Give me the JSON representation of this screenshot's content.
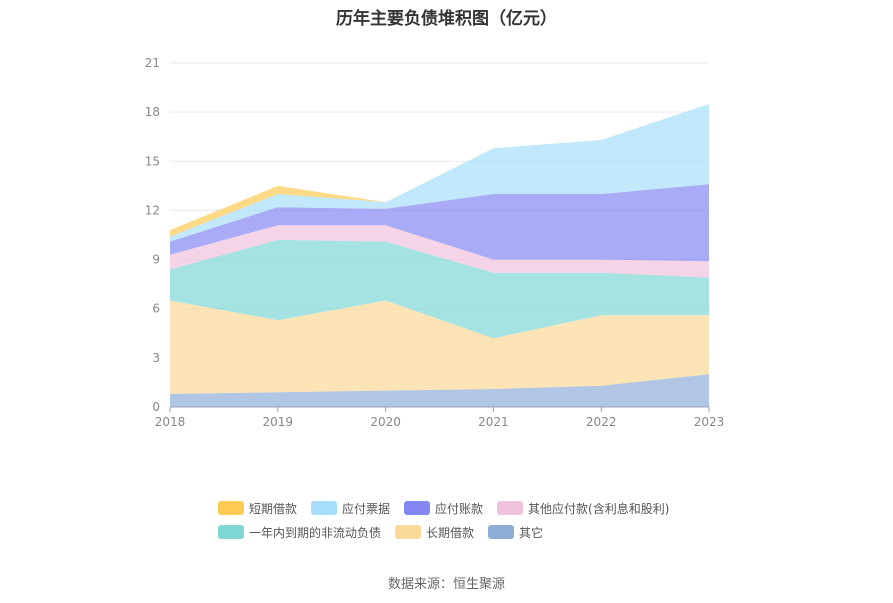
{
  "chart_data": {
    "type": "area",
    "stacked": true,
    "title": "历年主要负债堆积图（亿元）",
    "categories": [
      "2018",
      "2019",
      "2020",
      "2021",
      "2022",
      "2023"
    ],
    "ylim": [
      0,
      21
    ],
    "yticks": [
      "0",
      "3",
      "6",
      "9",
      "12",
      "15",
      "18",
      "21"
    ],
    "grid": true,
    "legend_position": "bottom",
    "series": [
      {
        "name": "其它",
        "color": "#8eaed8",
        "values": [
          0.8,
          0.9,
          1.0,
          1.1,
          1.3,
          2.0
        ]
      },
      {
        "name": "长期借款",
        "color": "#fbd999",
        "values": [
          5.7,
          4.4,
          5.5,
          3.1,
          4.3,
          3.6
        ]
      },
      {
        "name": "一年内到期的非流动负债",
        "color": "#7fd7d6",
        "values": [
          1.9,
          4.9,
          3.6,
          4.0,
          2.6,
          2.3
        ]
      },
      {
        "name": "其他应付款(含利息和股利)",
        "color": "#f0c2dc",
        "values": [
          0.9,
          0.9,
          1.0,
          0.8,
          0.8,
          1.0
        ]
      },
      {
        "name": "应付账款",
        "color": "#8587f2",
        "values": [
          0.8,
          1.1,
          1.0,
          4.0,
          4.0,
          4.7
        ]
      },
      {
        "name": "应付票据",
        "color": "#a6defa",
        "values": [
          0.3,
          0.8,
          0.4,
          2.8,
          3.3,
          4.9
        ]
      },
      {
        "name": "短期借款",
        "color": "#fdcb52",
        "values": [
          0.4,
          0.5,
          0.0,
          0.0,
          0.0,
          0.0
        ]
      }
    ],
    "legend_order": [
      "短期借款",
      "应付票据",
      "应付账款",
      "其他应付款(含利息和股利)",
      "一年内到期的非流动负债",
      "长期借款",
      "其它"
    ]
  },
  "source": "数据来源：恒生聚源"
}
